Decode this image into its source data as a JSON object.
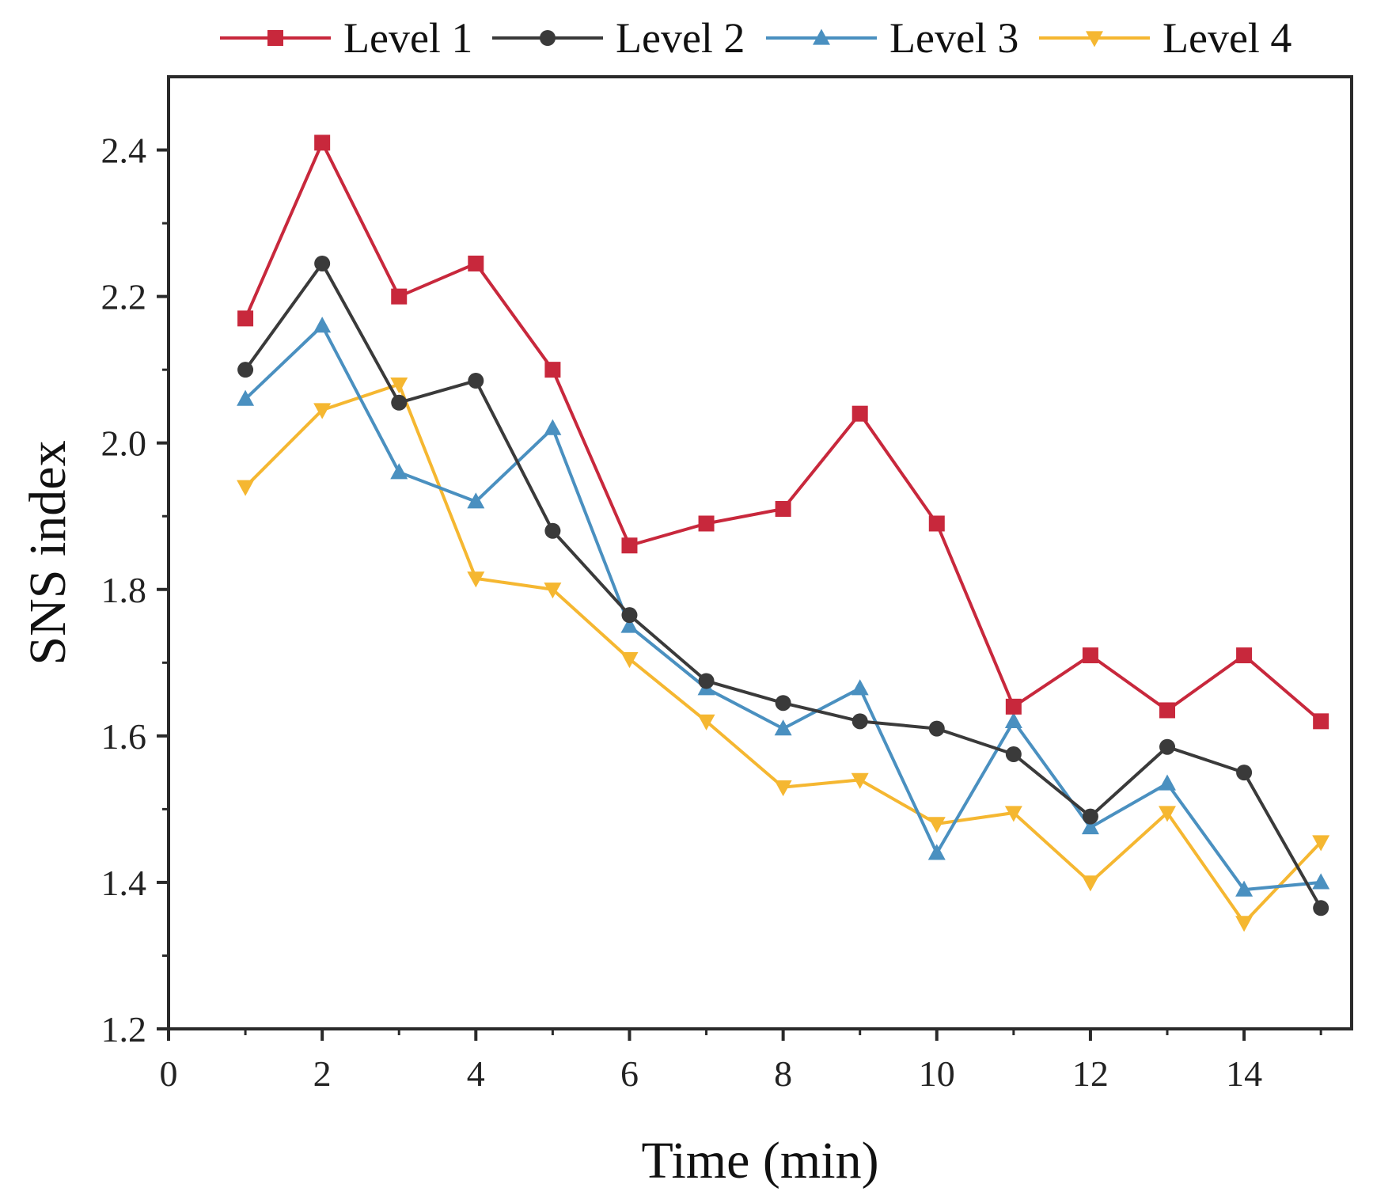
{
  "chart_data": {
    "type": "line",
    "title": "",
    "xlabel": "Time (min)",
    "ylabel": "SNS index",
    "xlim": [
      0,
      15.4
    ],
    "ylim": [
      1.2,
      2.5
    ],
    "xticks": [
      0,
      2,
      4,
      6,
      8,
      10,
      12,
      14
    ],
    "yticks": [
      1.2,
      1.4,
      1.6,
      1.8,
      2.0,
      2.2,
      2.4
    ],
    "xtick_labels": [
      "0",
      "2",
      "4",
      "6",
      "8",
      "10",
      "12",
      "14"
    ],
    "ytick_labels": [
      "1.2",
      "1.4",
      "1.6",
      "1.8",
      "2.0",
      "2.2",
      "2.4"
    ],
    "grid": false,
    "legend_position": "top",
    "x": [
      1,
      2,
      3,
      4,
      5,
      6,
      7,
      8,
      9,
      10,
      11,
      12,
      13,
      14,
      15
    ],
    "series": [
      {
        "name": "Level 1",
        "color": "#c8283c",
        "marker": "square",
        "values": [
          2.17,
          2.41,
          2.2,
          2.245,
          2.1,
          1.86,
          1.89,
          1.91,
          2.04,
          1.89,
          1.64,
          1.71,
          1.635,
          1.71,
          1.62
        ]
      },
      {
        "name": "Level 2",
        "color": "#3a3a3a",
        "marker": "circle",
        "values": [
          2.1,
          2.245,
          2.055,
          2.085,
          1.88,
          1.765,
          1.675,
          1.645,
          1.62,
          1.61,
          1.575,
          1.49,
          1.585,
          1.55,
          1.365
        ]
      },
      {
        "name": "Level 3",
        "color": "#4a90c0",
        "marker": "triangle-up",
        "values": [
          2.06,
          2.16,
          1.96,
          1.92,
          2.02,
          1.75,
          1.665,
          1.61,
          1.665,
          1.44,
          1.62,
          1.475,
          1.535,
          1.39,
          1.4
        ]
      },
      {
        "name": "Level 4",
        "color": "#f5b731",
        "marker": "triangle-down",
        "values": [
          1.94,
          2.045,
          2.08,
          1.815,
          1.8,
          1.705,
          1.62,
          1.53,
          1.54,
          1.48,
          1.495,
          1.4,
          1.495,
          1.345,
          1.455
        ]
      }
    ]
  }
}
